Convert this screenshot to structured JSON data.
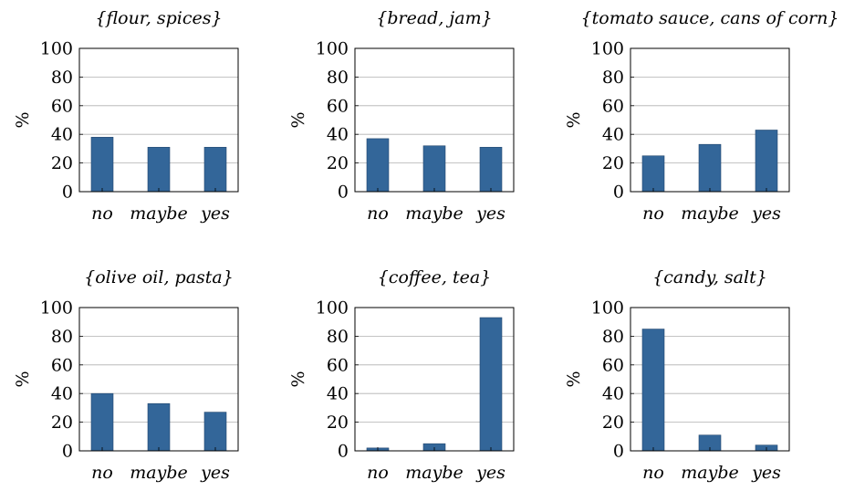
{
  "chart_data": [
    {
      "type": "bar",
      "title": "{flour, spices}",
      "ylabel": "%",
      "categories": [
        "no",
        "maybe",
        "yes"
      ],
      "values": [
        38,
        31,
        31
      ],
      "ylim": [
        0,
        100
      ],
      "yticks": [
        0,
        20,
        40,
        60,
        80,
        100
      ],
      "grid": true,
      "color": "#336699"
    },
    {
      "type": "bar",
      "title": "{bread, jam}",
      "ylabel": "%",
      "categories": [
        "no",
        "maybe",
        "yes"
      ],
      "values": [
        37,
        32,
        31
      ],
      "ylim": [
        0,
        100
      ],
      "yticks": [
        0,
        20,
        40,
        60,
        80,
        100
      ],
      "grid": true,
      "color": "#336699"
    },
    {
      "type": "bar",
      "title": "{tomato sauce, cans of corn}",
      "ylabel": "%",
      "categories": [
        "no",
        "maybe",
        "yes"
      ],
      "values": [
        25,
        33,
        43
      ],
      "ylim": [
        0,
        100
      ],
      "yticks": [
        0,
        20,
        40,
        60,
        80,
        100
      ],
      "grid": true,
      "color": "#336699"
    },
    {
      "type": "bar",
      "title": "{olive oil, pasta}",
      "ylabel": "%",
      "categories": [
        "no",
        "maybe",
        "yes"
      ],
      "values": [
        40,
        33,
        27
      ],
      "ylim": [
        0,
        100
      ],
      "yticks": [
        0,
        20,
        40,
        60,
        80,
        100
      ],
      "grid": true,
      "color": "#336699"
    },
    {
      "type": "bar",
      "title": "{coffee, tea}",
      "ylabel": "%",
      "categories": [
        "no",
        "maybe",
        "yes"
      ],
      "values": [
        2,
        5,
        93
      ],
      "ylim": [
        0,
        100
      ],
      "yticks": [
        0,
        20,
        40,
        60,
        80,
        100
      ],
      "grid": true,
      "color": "#336699"
    },
    {
      "type": "bar",
      "title": "{candy, salt}",
      "ylabel": "%",
      "categories": [
        "no",
        "maybe",
        "yes"
      ],
      "values": [
        85,
        11,
        4
      ],
      "ylim": [
        0,
        100
      ],
      "yticks": [
        0,
        20,
        40,
        60,
        80,
        100
      ],
      "grid": true,
      "color": "#336699"
    }
  ]
}
